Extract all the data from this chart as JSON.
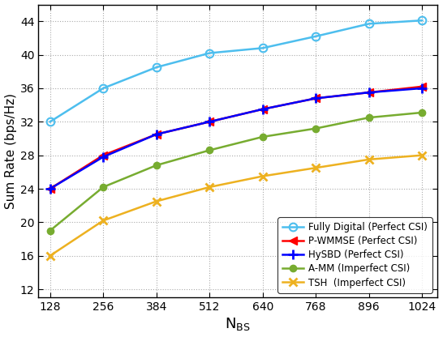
{
  "x": [
    128,
    256,
    384,
    512,
    640,
    768,
    896,
    1024
  ],
  "fully_digital": [
    32.0,
    36.0,
    38.5,
    40.2,
    40.8,
    42.2,
    43.7,
    44.1
  ],
  "p_wmmse": [
    24.0,
    28.0,
    30.5,
    32.0,
    33.5,
    34.8,
    35.5,
    36.2
  ],
  "hysbd": [
    24.0,
    27.8,
    30.5,
    32.0,
    33.5,
    34.8,
    35.5,
    36.0
  ],
  "a_mm": [
    19.0,
    24.2,
    26.8,
    28.6,
    30.2,
    31.2,
    32.5,
    33.1
  ],
  "tsh": [
    16.0,
    20.2,
    22.5,
    24.2,
    25.5,
    26.5,
    27.5,
    28.0
  ],
  "colors": {
    "fully_digital": "#4DBEEE",
    "p_wmmse": "#FF0000",
    "hysbd": "#0000FF",
    "a_mm": "#77AC30",
    "tsh": "#EDB120"
  },
  "labels": {
    "fully_digital": "Fully Digital (Perfect CSI)",
    "p_wmmse": "P-WMMSE (Perfect CSI)",
    "hysbd": "HySBD (Perfect CSI)",
    "a_mm": "A-MM (Imperfect CSI)",
    "tsh": "TSH  (Imperfect CSI)"
  },
  "ylabel": "Sum Rate (bps/Hz)",
  "xlim": [
    100,
    1060
  ],
  "ylim": [
    11,
    46
  ],
  "yticks": [
    12,
    16,
    20,
    24,
    28,
    32,
    36,
    40,
    44
  ],
  "xticks": [
    128,
    256,
    384,
    512,
    640,
    768,
    896,
    1024
  ],
  "figsize": [
    5.46,
    4.16
  ],
  "dpi": 100
}
